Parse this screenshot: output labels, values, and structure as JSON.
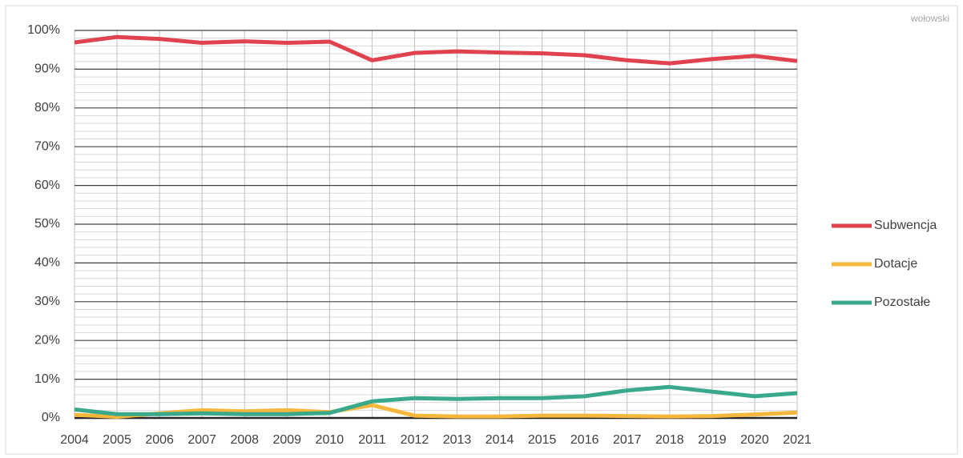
{
  "chart_data": {
    "type": "line",
    "annotation": "wołowski",
    "categories": [
      "2004",
      "2005",
      "2006",
      "2007",
      "2008",
      "2009",
      "2010",
      "2011",
      "2012",
      "2013",
      "2014",
      "2015",
      "2016",
      "2017",
      "2018",
      "2019",
      "2020",
      "2021"
    ],
    "series": [
      {
        "name": "Subwencja",
        "color": "#e0434d",
        "values": [
          96.9,
          98.3,
          97.8,
          96.8,
          97.2,
          96.8,
          97.1,
          92.3,
          94.2,
          94.6,
          94.3,
          94.1,
          93.6,
          92.3,
          91.5,
          92.6,
          93.4,
          92.1
        ]
      },
      {
        "name": "Dotacje",
        "color": "#f5b83d",
        "values": [
          0.8,
          0.3,
          1.2,
          2.0,
          1.7,
          2.0,
          1.5,
          3.3,
          0.6,
          0.4,
          0.4,
          0.6,
          0.6,
          0.5,
          0.4,
          0.5,
          0.9,
          1.4
        ]
      },
      {
        "name": "Pozostałe",
        "color": "#3aa88a",
        "values": [
          2.2,
          1.0,
          1.0,
          1.2,
          1.0,
          1.0,
          1.3,
          4.3,
          5.1,
          4.9,
          5.1,
          5.1,
          5.6,
          7.1,
          8.0,
          6.8,
          5.6,
          6.4
        ]
      }
    ],
    "ylim": [
      0,
      100
    ],
    "yticks": [
      {
        "value": 0,
        "label": "0%"
      },
      {
        "value": 10,
        "label": "10%"
      },
      {
        "value": 20,
        "label": "20%"
      },
      {
        "value": 30,
        "label": "30%"
      },
      {
        "value": 40,
        "label": "40%"
      },
      {
        "value": 50,
        "label": "50%"
      },
      {
        "value": 60,
        "label": "60%"
      },
      {
        "value": 70,
        "label": "70%"
      },
      {
        "value": 80,
        "label": "80%"
      },
      {
        "value": 90,
        "label": "90%"
      },
      {
        "value": 100,
        "label": "100%"
      }
    ],
    "yminorticks": [
      2,
      4,
      6,
      8,
      12,
      14,
      16,
      18,
      22,
      24,
      26,
      28,
      32,
      34,
      36,
      38,
      42,
      44,
      46,
      48,
      52,
      54,
      56,
      58,
      62,
      64,
      66,
      68,
      72,
      74,
      76,
      78,
      82,
      84,
      86,
      88,
      92,
      94,
      96,
      98
    ],
    "grid": true,
    "legend": "right"
  }
}
